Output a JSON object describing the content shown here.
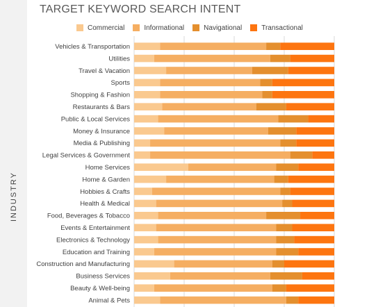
{
  "chart_data": {
    "type": "bar",
    "orientation": "horizontal",
    "stacked": "100%",
    "title": "TARGET KEYWORD SEARCH INTENT",
    "ylabel": "INDUSTRY",
    "xlabel": "",
    "legend_position": "top",
    "grid": true,
    "xlim": [
      0,
      100
    ],
    "categories": [
      "Vehicles & Transportation",
      "Utilities",
      "Travel & Vacation",
      "Sports",
      "Shopping & Fashion",
      "Restaurants & Bars",
      "Public & Local Services",
      "Money & Insurance",
      "Media & Publishing",
      "Legal Services & Government",
      "Home Services",
      "Home & Garden",
      "Hobbies & Crafts",
      "Health & Medical",
      "Food, Beverages & Tobacco",
      "Events & Entertainment",
      "Electronics & Technology",
      "Education and Training",
      "Construction and Manufacturing",
      "Business Services",
      "Beauty & Well-being",
      "Animal & Pets"
    ],
    "series": [
      {
        "name": "Commercial",
        "color": "#fac98f",
        "values": [
          13,
          10,
          16,
          13,
          13,
          14,
          12,
          15,
          8,
          8,
          27,
          16,
          9,
          11,
          12,
          11,
          12,
          10,
          20,
          18,
          10,
          13
        ]
      },
      {
        "name": "Informational",
        "color": "#f5ae62",
        "values": [
          53,
          58,
          43,
          50,
          51,
          47,
          60,
          52,
          65,
          70,
          44,
          54,
          64,
          63,
          54,
          60,
          59,
          61,
          49,
          50,
          59,
          63
        ]
      },
      {
        "name": "Navigational",
        "color": "#e48f2e",
        "values": [
          7,
          10,
          18,
          6,
          5,
          15,
          15,
          14,
          8,
          11,
          11,
          7,
          5,
          5,
          17,
          8,
          9,
          11,
          6,
          16,
          7,
          6
        ]
      },
      {
        "name": "Transactional",
        "color": "#fd7510",
        "values": [
          27,
          22,
          23,
          31,
          31,
          24,
          13,
          19,
          19,
          11,
          18,
          23,
          22,
          21,
          17,
          21,
          20,
          18,
          25,
          16,
          24,
          18
        ]
      }
    ]
  }
}
